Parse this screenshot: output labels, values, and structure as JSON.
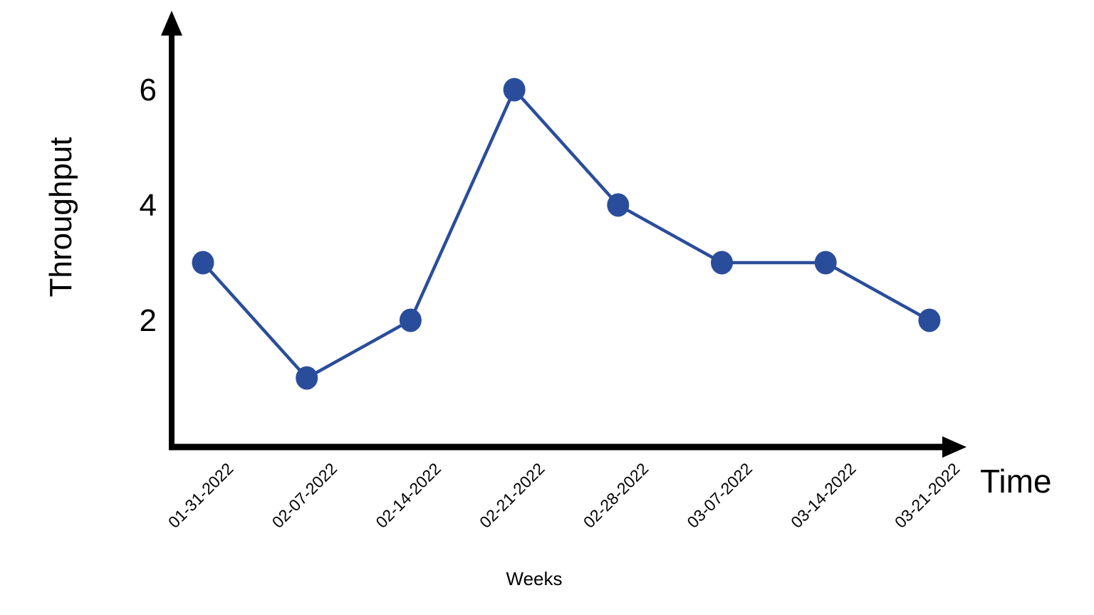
{
  "colors": {
    "line": "#2a4d9b",
    "marker": "#2a4d9b",
    "axis": "#000000",
    "text": "#000000",
    "background": "#ffffff"
  },
  "chart_data": {
    "type": "line",
    "title": "",
    "x": [
      "01-31-2022",
      "02-07-2022",
      "02-14-2022",
      "02-21-2022",
      "02-28-2022",
      "03-07-2022",
      "03-14-2022",
      "03-21-2022"
    ],
    "series": [
      {
        "name": "Throughput",
        "values": [
          3,
          1,
          2,
          6,
          4,
          3,
          3,
          2
        ]
      }
    ],
    "xlabel": "Time",
    "x_sublabel": "Weeks",
    "ylabel": "Throughput",
    "yticks": [
      2,
      4,
      6
    ],
    "ylim": [
      0,
      7
    ],
    "grid": false,
    "legend_position": "none",
    "marker_style": "filled-circle",
    "x_tick_rotation_deg": -45
  }
}
